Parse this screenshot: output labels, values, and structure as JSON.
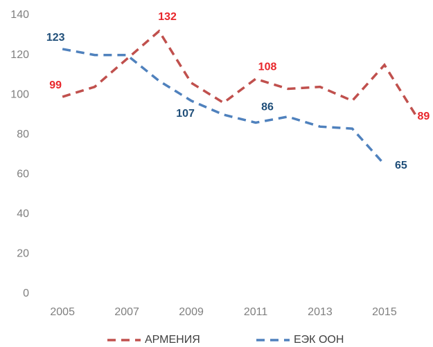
{
  "chart_data": {
    "type": "line",
    "x": [
      2005,
      2006,
      2007,
      2008,
      2009,
      2010,
      2011,
      2012,
      2013,
      2014,
      2015,
      2016
    ],
    "series": [
      {
        "name": "АРМЕНИЯ",
        "color": "#c0504d",
        "label_color": "#e8262b",
        "values": [
          99,
          104,
          118,
          132,
          106,
          96,
          108,
          103,
          104,
          97,
          115,
          89
        ]
      },
      {
        "name": "ЕЭК ООН",
        "color": "#4f81bd",
        "label_color": "#1f4e79",
        "values": [
          123,
          120,
          120,
          107,
          97,
          90,
          86,
          89,
          84,
          83,
          65,
          null
        ]
      }
    ],
    "xlim": [
      2004.2,
      2016.4
    ],
    "xticks": [
      2005,
      2007,
      2009,
      2011,
      2013,
      2015
    ],
    "ylim": [
      0,
      140
    ],
    "yticks": [
      0,
      20,
      40,
      60,
      80,
      100,
      120,
      140
    ],
    "grid": false,
    "legend": "bottom"
  }
}
